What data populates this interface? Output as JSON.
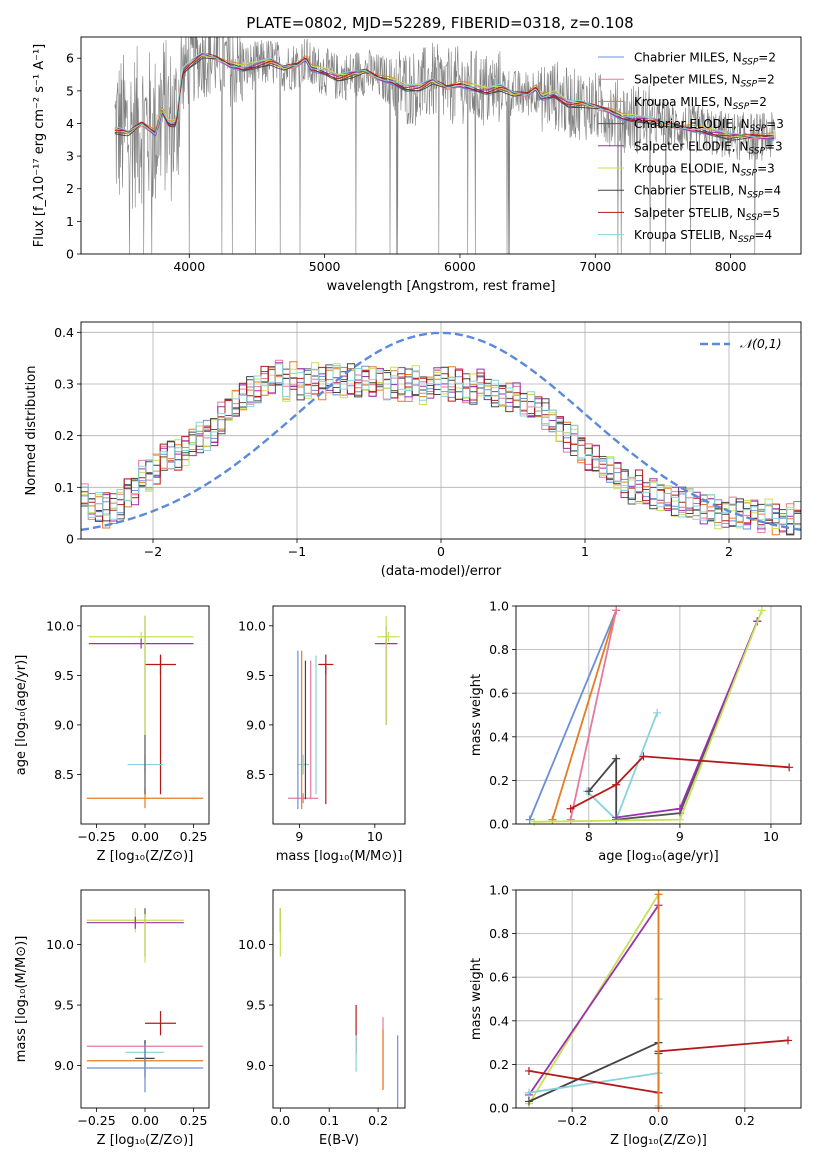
{
  "figure_title": "PLATE=0802, MJD=52289, FIBERID=0318, z=0.108",
  "colors": {
    "Chabrier MILES": "#6a8fd8",
    "Salpeter MILES": "#e67a9c",
    "Kroupa MILES": "#e67c22",
    "Chabrier ELODIE": "#555555",
    "Salpeter ELODIE": "#9b30b0",
    "Kroupa ELODIE": "#c7e25a",
    "Chabrier STELIB": "#454545",
    "Salpeter STELIB": "#b31b1b",
    "Kroupa STELIB": "#86d3dc",
    "data": "#808080",
    "normal": "#5b8bd8"
  },
  "chart_data": [
    {
      "id": "spectrum",
      "type": "line",
      "title": "PLATE=0802, MJD=52289, FIBERID=0318, z=0.108",
      "xlabel": "wavelength [Angstrom, rest frame]",
      "ylabel": "Flux [f_λ10^-17 erg cm^-2 s^-1 A^-1]",
      "xlim": [
        3200,
        8520
      ],
      "ylim": [
        0,
        6.65
      ],
      "xticks": [
        4000,
        5000,
        6000,
        7000,
        8000
      ],
      "yticks": [
        0,
        1,
        2,
        3,
        4,
        5,
        6
      ],
      "legend_position": "top-right",
      "grid": false,
      "series": [
        {
          "name": "Chabrier MILES, N_SSP=2"
        },
        {
          "name": "Salpeter MILES, N_SSP=2"
        },
        {
          "name": "Kroupa MILES, N_SSP=2"
        },
        {
          "name": "Chabrier ELODIE, N_SSP=3"
        },
        {
          "name": "Salpeter ELODIE, N_SSP=3"
        },
        {
          "name": "Kroupa ELODIE, N_SSP=3"
        },
        {
          "name": "Chabrier STELIB, N_SSP=4"
        },
        {
          "name": "Salpeter STELIB, N_SSP=5"
        },
        {
          "name": "Kroupa STELIB, N_SSP=4"
        }
      ],
      "model_continuum": {
        "x": [
          3450,
          3550,
          3650,
          3750,
          3800,
          3850,
          3900,
          3950,
          4000,
          4100,
          4200,
          4300,
          4400,
          4500,
          4600,
          4700,
          4800,
          4860,
          4900,
          5000,
          5100,
          5200,
          5300,
          5400,
          5500,
          5600,
          5700,
          5800,
          5900,
          6000,
          6100,
          6200,
          6300,
          6400,
          6500,
          6563,
          6600,
          6700,
          6800,
          6900,
          7000,
          7100,
          7200,
          7400,
          7600,
          7800,
          8000,
          8200,
          8330
        ],
        "y": [
          3.8,
          3.7,
          4.0,
          3.7,
          4.4,
          4.0,
          4.0,
          5.6,
          5.8,
          6.1,
          6.0,
          5.8,
          5.7,
          5.8,
          5.9,
          5.7,
          5.8,
          6.0,
          5.7,
          5.6,
          5.4,
          5.5,
          5.6,
          5.4,
          5.3,
          5.1,
          5.1,
          5.3,
          5.1,
          5.2,
          5.1,
          5.0,
          5.1,
          4.9,
          4.9,
          5.1,
          4.8,
          4.9,
          4.6,
          4.6,
          4.5,
          4.4,
          4.2,
          4.1,
          3.9,
          3.8,
          3.6,
          3.6,
          3.6
        ]
      }
    },
    {
      "id": "residuals",
      "type": "line",
      "xlabel": "(data-model)/error",
      "ylabel": "Normed distribution",
      "xlim": [
        -2.5,
        2.5
      ],
      "ylim": [
        0,
        0.42
      ],
      "xticks": [
        -2,
        -1,
        0,
        1,
        2
      ],
      "yticks": [
        0.0,
        0.1,
        0.2,
        0.3,
        0.4
      ],
      "legend": [
        "𝒩(0,1)"
      ],
      "legend_position": "top-right",
      "grid": true,
      "bin_width": 0.1,
      "histogram_envelope": [
        0.08,
        0.06,
        0.06,
        0.055,
        0.06,
        0.07,
        0.09,
        0.1,
        0.12,
        0.12,
        0.14,
        0.16,
        0.16,
        0.16,
        0.17,
        0.19,
        0.2,
        0.2,
        0.21,
        0.23,
        0.25,
        0.26,
        0.27,
        0.28,
        0.29,
        0.3,
        0.31,
        0.32,
        0.3,
        0.31,
        0.3,
        0.3,
        0.31,
        0.3,
        0.31,
        0.31,
        0.3,
        0.31,
        0.3,
        0.31,
        0.3,
        0.31,
        0.3,
        0.3,
        0.3,
        0.3,
        0.31,
        0.29,
        0.3,
        0.31,
        0.3,
        0.3,
        0.3,
        0.29,
        0.29,
        0.3,
        0.29,
        0.28,
        0.28,
        0.28,
        0.27,
        0.26,
        0.26,
        0.25,
        0.24,
        0.23,
        0.22,
        0.2,
        0.19,
        0.17,
        0.16,
        0.15,
        0.14,
        0.13,
        0.12,
        0.11,
        0.1,
        0.1,
        0.09,
        0.09,
        0.08,
        0.08,
        0.07,
        0.07,
        0.07,
        0.06,
        0.06,
        0.06,
        0.05,
        0.05,
        0.05,
        0.05,
        0.05,
        0.05,
        0.04,
        0.05,
        0.04,
        0.04,
        0.04,
        0.04
      ]
    },
    {
      "id": "z_vs_age",
      "type": "scatter",
      "xlabel": "Z [log10(Z/Z⊙)]",
      "ylabel": "age [log10(age/yr)]",
      "xlim": [
        -0.33,
        0.33
      ],
      "ylim": [
        8.0,
        10.2
      ],
      "xticks": [
        -0.25,
        0.0,
        0.25
      ],
      "xtick_labels": [
        "−0.25",
        "0.00",
        "0.25"
      ],
      "yticks": [
        8.5,
        9.0,
        9.5,
        10.0
      ],
      "grid": false,
      "points": [
        {
          "series": "Kroupa ELODIE",
          "x": -0.02,
          "xerr": 0.27,
          "y": 9.89,
          "yerr": 0.05
        },
        {
          "series": "Salpeter ELODIE",
          "x": -0.02,
          "xerr": 0.27,
          "y": 9.82,
          "yerr": 0.05
        },
        {
          "series": "Salpeter STELIB",
          "x": 0.08,
          "xerr": 0.08,
          "y": 9.61,
          "yerr": 0.1
        },
        {
          "series": "Salpeter STELIB",
          "x": 0.08,
          "xerr": 0.0,
          "y": 9.0,
          "yerr": 0.7
        },
        {
          "series": "Kroupa STELIB",
          "x": 0.0,
          "xerr": 0.09,
          "y": 8.6,
          "yerr": 0.1
        },
        {
          "series": "Kroupa MILES",
          "x": 0.0,
          "xerr": 0.3,
          "y": 8.26,
          "yerr": 0.1
        },
        {
          "series": "Chabrier ELODIE",
          "x": 0.0,
          "xerr": 0.0,
          "y": 9.2,
          "yerr": 0.9
        },
        {
          "series": "Kroupa ELODIE",
          "x": 0.0,
          "xerr": 0.0,
          "y": 9.5,
          "yerr": 0.6
        }
      ]
    },
    {
      "id": "mass_vs_age",
      "type": "scatter",
      "xlabel": "mass [log10(M/M⊙)]",
      "xlim": [
        8.65,
        10.4
      ],
      "ylim": [
        8.0,
        10.2
      ],
      "xticks": [
        9,
        10
      ],
      "yticks": [
        8.5,
        9.0,
        9.5,
        10.0
      ],
      "grid": false,
      "points": [
        {
          "series": "Kroupa ELODIE",
          "x": 10.18,
          "xerr": 0.15,
          "y": 9.89,
          "yerr": 0.05
        },
        {
          "series": "Salpeter ELODIE",
          "x": 10.15,
          "xerr": 0.15,
          "y": 9.82,
          "yerr": 0.05
        },
        {
          "series": "Salpeter ELODIE",
          "x": 10.15,
          "xerr": 0.0,
          "y": 9.5,
          "yerr": 0.5
        },
        {
          "series": "Kroupa ELODIE",
          "x": 10.15,
          "xerr": 0.0,
          "y": 9.55,
          "yerr": 0.55
        },
        {
          "series": "Salpeter STELIB",
          "x": 9.35,
          "xerr": 0.1,
          "y": 9.61,
          "yerr": 0.1
        },
        {
          "series": "Salpeter STELIB",
          "x": 9.35,
          "xerr": 0.0,
          "y": 8.9,
          "yerr": 0.7
        },
        {
          "series": "Kroupa STELIB",
          "x": 9.05,
          "xerr": 0.08,
          "y": 8.6,
          "yerr": 0.1
        },
        {
          "series": "Salpeter MILES",
          "x": 9.05,
          "xerr": 0.2,
          "y": 8.26,
          "yerr": 0.05
        },
        {
          "series": "Chabrier MILES",
          "x": 8.98,
          "xerr": 0.0,
          "y": 8.95,
          "yerr": 0.8
        },
        {
          "series": "Kroupa MILES",
          "x": 9.03,
          "xerr": 0.0,
          "y": 8.95,
          "yerr": 0.8
        },
        {
          "series": "Chabrier STELIB",
          "x": 9.08,
          "xerr": 0.0,
          "y": 8.95,
          "yerr": 0.7
        },
        {
          "series": "Salpeter MILES",
          "x": 9.15,
          "xerr": 0.0,
          "y": 8.95,
          "yerr": 0.7
        },
        {
          "series": "Kroupa STELIB",
          "x": 9.22,
          "xerr": 0.0,
          "y": 9.0,
          "yerr": 0.7
        }
      ]
    },
    {
      "id": "age_vs_weight",
      "type": "line",
      "xlabel": "age [log10(age/yr)]",
      "ylabel": "mass weight",
      "xlim": [
        7.2,
        10.33
      ],
      "ylim": [
        0.0,
        1.0
      ],
      "xticks": [
        8,
        9,
        10
      ],
      "yticks": [
        0.0,
        0.2,
        0.4,
        0.6,
        0.8,
        1.0
      ],
      "grid": true,
      "series": [
        {
          "series": "Chabrier MILES",
          "x": [
            7.35,
            8.3
          ],
          "y": [
            0.02,
            0.98
          ]
        },
        {
          "series": "Kroupa MILES",
          "x": [
            7.6,
            8.3
          ],
          "y": [
            0.02,
            0.98
          ]
        },
        {
          "series": "Salpeter MILES",
          "x": [
            7.8,
            8.3
          ],
          "y": [
            0.02,
            0.98
          ]
        },
        {
          "series": "Kroupa STELIB",
          "x": [
            7.98,
            8.3,
            8.75
          ],
          "y": [
            0.15,
            0.02,
            0.51
          ]
        },
        {
          "series": "Chabrier STELIB",
          "x": [
            8.0,
            8.3,
            8.3
          ],
          "y": [
            0.15,
            0.3,
            0.02
          ]
        },
        {
          "series": "Chabrier ELODIE",
          "x": [
            8.3,
            9.0,
            9.85
          ],
          "y": [
            0.02,
            0.05,
            0.93
          ]
        },
        {
          "series": "Salpeter ELODIE",
          "x": [
            8.3,
            9.0,
            9.85
          ],
          "y": [
            0.03,
            0.07,
            0.93
          ]
        },
        {
          "series": "Kroupa ELODIE",
          "x": [
            7.4,
            9.0,
            9.9
          ],
          "y": [
            0.01,
            0.02,
            0.98
          ]
        },
        {
          "series": "Salpeter STELIB",
          "x": [
            7.8,
            8.3,
            8.6,
            10.2
          ],
          "y": [
            0.07,
            0.18,
            0.31,
            0.26
          ]
        }
      ]
    },
    {
      "id": "z_vs_mass",
      "type": "scatter",
      "xlabel": "Z [log10(Z/Z⊙)]",
      "ylabel": "mass [log10(M/M⊙)]",
      "xlim": [
        -0.33,
        0.33
      ],
      "ylim": [
        8.65,
        10.45
      ],
      "xticks": [
        -0.25,
        0.0,
        0.25
      ],
      "xtick_labels": [
        "−0.25",
        "0.00",
        "0.25"
      ],
      "yticks": [
        9.0,
        9.5,
        10.0
      ],
      "grid": false,
      "points": [
        {
          "series": "Kroupa ELODIE",
          "x": -0.05,
          "xerr": 0.25,
          "y": 10.2,
          "yerr": 0.1
        },
        {
          "series": "Salpeter ELODIE",
          "x": -0.05,
          "xerr": 0.25,
          "y": 10.18,
          "yerr": 0.05
        },
        {
          "series": "Chabrier ELODIE",
          "x": 0.0,
          "xerr": 0.0,
          "y": 10.1,
          "yerr": 0.2
        },
        {
          "series": "Kroupa ELODIE",
          "x": 0.0,
          "xerr": 0.0,
          "y": 10.05,
          "yerr": 0.2
        },
        {
          "series": "Salpeter STELIB",
          "x": 0.08,
          "xerr": 0.08,
          "y": 9.35,
          "yerr": 0.1
        },
        {
          "series": "Salpeter MILES",
          "x": 0.0,
          "xerr": 0.3,
          "y": 9.16,
          "yerr": 0.05
        },
        {
          "series": "Kroupa STELIB",
          "x": 0.0,
          "xerr": 0.1,
          "y": 9.11,
          "yerr": 0.1
        },
        {
          "series": "Kroupa MILES",
          "x": 0.0,
          "xerr": 0.3,
          "y": 9.04,
          "yerr": 0.15
        },
        {
          "series": "Chabrier STELIB",
          "x": 0.0,
          "xerr": 0.05,
          "y": 9.06,
          "yerr": 0.15
        },
        {
          "series": "Chabrier MILES",
          "x": 0.0,
          "xerr": 0.3,
          "y": 8.98,
          "yerr": 0.2
        }
      ]
    },
    {
      "id": "ebv_vs_mass",
      "type": "scatter",
      "xlabel": "E(B-V)",
      "xlim": [
        -0.015,
        0.255
      ],
      "ylim": [
        8.65,
        10.45
      ],
      "xticks": [
        0.0,
        0.1,
        0.2
      ],
      "xtick_labels": [
        "0.0",
        "0.1",
        "0.2"
      ],
      "yticks": [
        9.0,
        9.5,
        10.0
      ],
      "grid": false,
      "points": [
        {
          "series": "Salpeter ELODIE",
          "x": 0.0,
          "xerr": 0.0,
          "y": 10.2,
          "yerr": 0.1
        },
        {
          "series": "Kroupa ELODIE",
          "x": 0.0,
          "xerr": 0.0,
          "y": 10.1,
          "yerr": 0.2
        },
        {
          "series": "Salpeter STELIB",
          "x": 0.155,
          "xerr": 0.0,
          "y": 9.3,
          "yerr": 0.2
        },
        {
          "series": "Kroupa STELIB",
          "x": 0.155,
          "xerr": 0.0,
          "y": 9.1,
          "yerr": 0.15
        },
        {
          "series": "Salpeter MILES",
          "x": 0.21,
          "xerr": 0.0,
          "y": 9.1,
          "yerr": 0.3
        },
        {
          "series": "Kroupa MILES",
          "x": 0.21,
          "xerr": 0.0,
          "y": 9.05,
          "yerr": 0.25
        },
        {
          "series": "Chabrier MILES",
          "x": 0.24,
          "xerr": 0.0,
          "y": 8.95,
          "yerr": 0.3
        }
      ]
    },
    {
      "id": "z_vs_weight",
      "type": "line",
      "xlabel": "Z [log10(Z/Z⊙)]",
      "ylabel": "mass weight",
      "xlim": [
        -0.33,
        0.33
      ],
      "ylim": [
        0.0,
        1.0
      ],
      "xticks": [
        -0.2,
        0.0,
        0.2
      ],
      "xtick_labels": [
        "−0.2",
        "0.0",
        "0.2"
      ],
      "yticks": [
        0.0,
        0.2,
        0.4,
        0.6,
        0.8,
        1.0
      ],
      "grid": true,
      "series": [
        {
          "series": "Kroupa ELODIE",
          "x": [
            -0.3,
            0.0,
            0.0
          ],
          "y": [
            0.02,
            0.98,
            0.5
          ]
        },
        {
          "series": "Salpeter ELODIE",
          "x": [
            -0.3,
            0.0
          ],
          "y": [
            0.06,
            0.93
          ]
        },
        {
          "series": "Chabrier STELIB",
          "x": [
            -0.3,
            0.0,
            0.0
          ],
          "y": [
            0.03,
            0.3,
            0.25
          ]
        },
        {
          "series": "Kroupa STELIB",
          "x": [
            -0.3,
            0.0,
            0.0,
            0.0
          ],
          "y": [
            0.07,
            0.16,
            0.5,
            0.01
          ]
        },
        {
          "series": "Salpeter STELIB",
          "x": [
            -0.3,
            0.0,
            0.0,
            0.3
          ],
          "y": [
            0.17,
            0.07,
            0.26,
            0.31
          ]
        },
        {
          "series": "Kroupa MILES",
          "x": [
            0.0,
            0.0
          ],
          "y": [
            0.0,
            0.98
          ]
        }
      ]
    }
  ]
}
